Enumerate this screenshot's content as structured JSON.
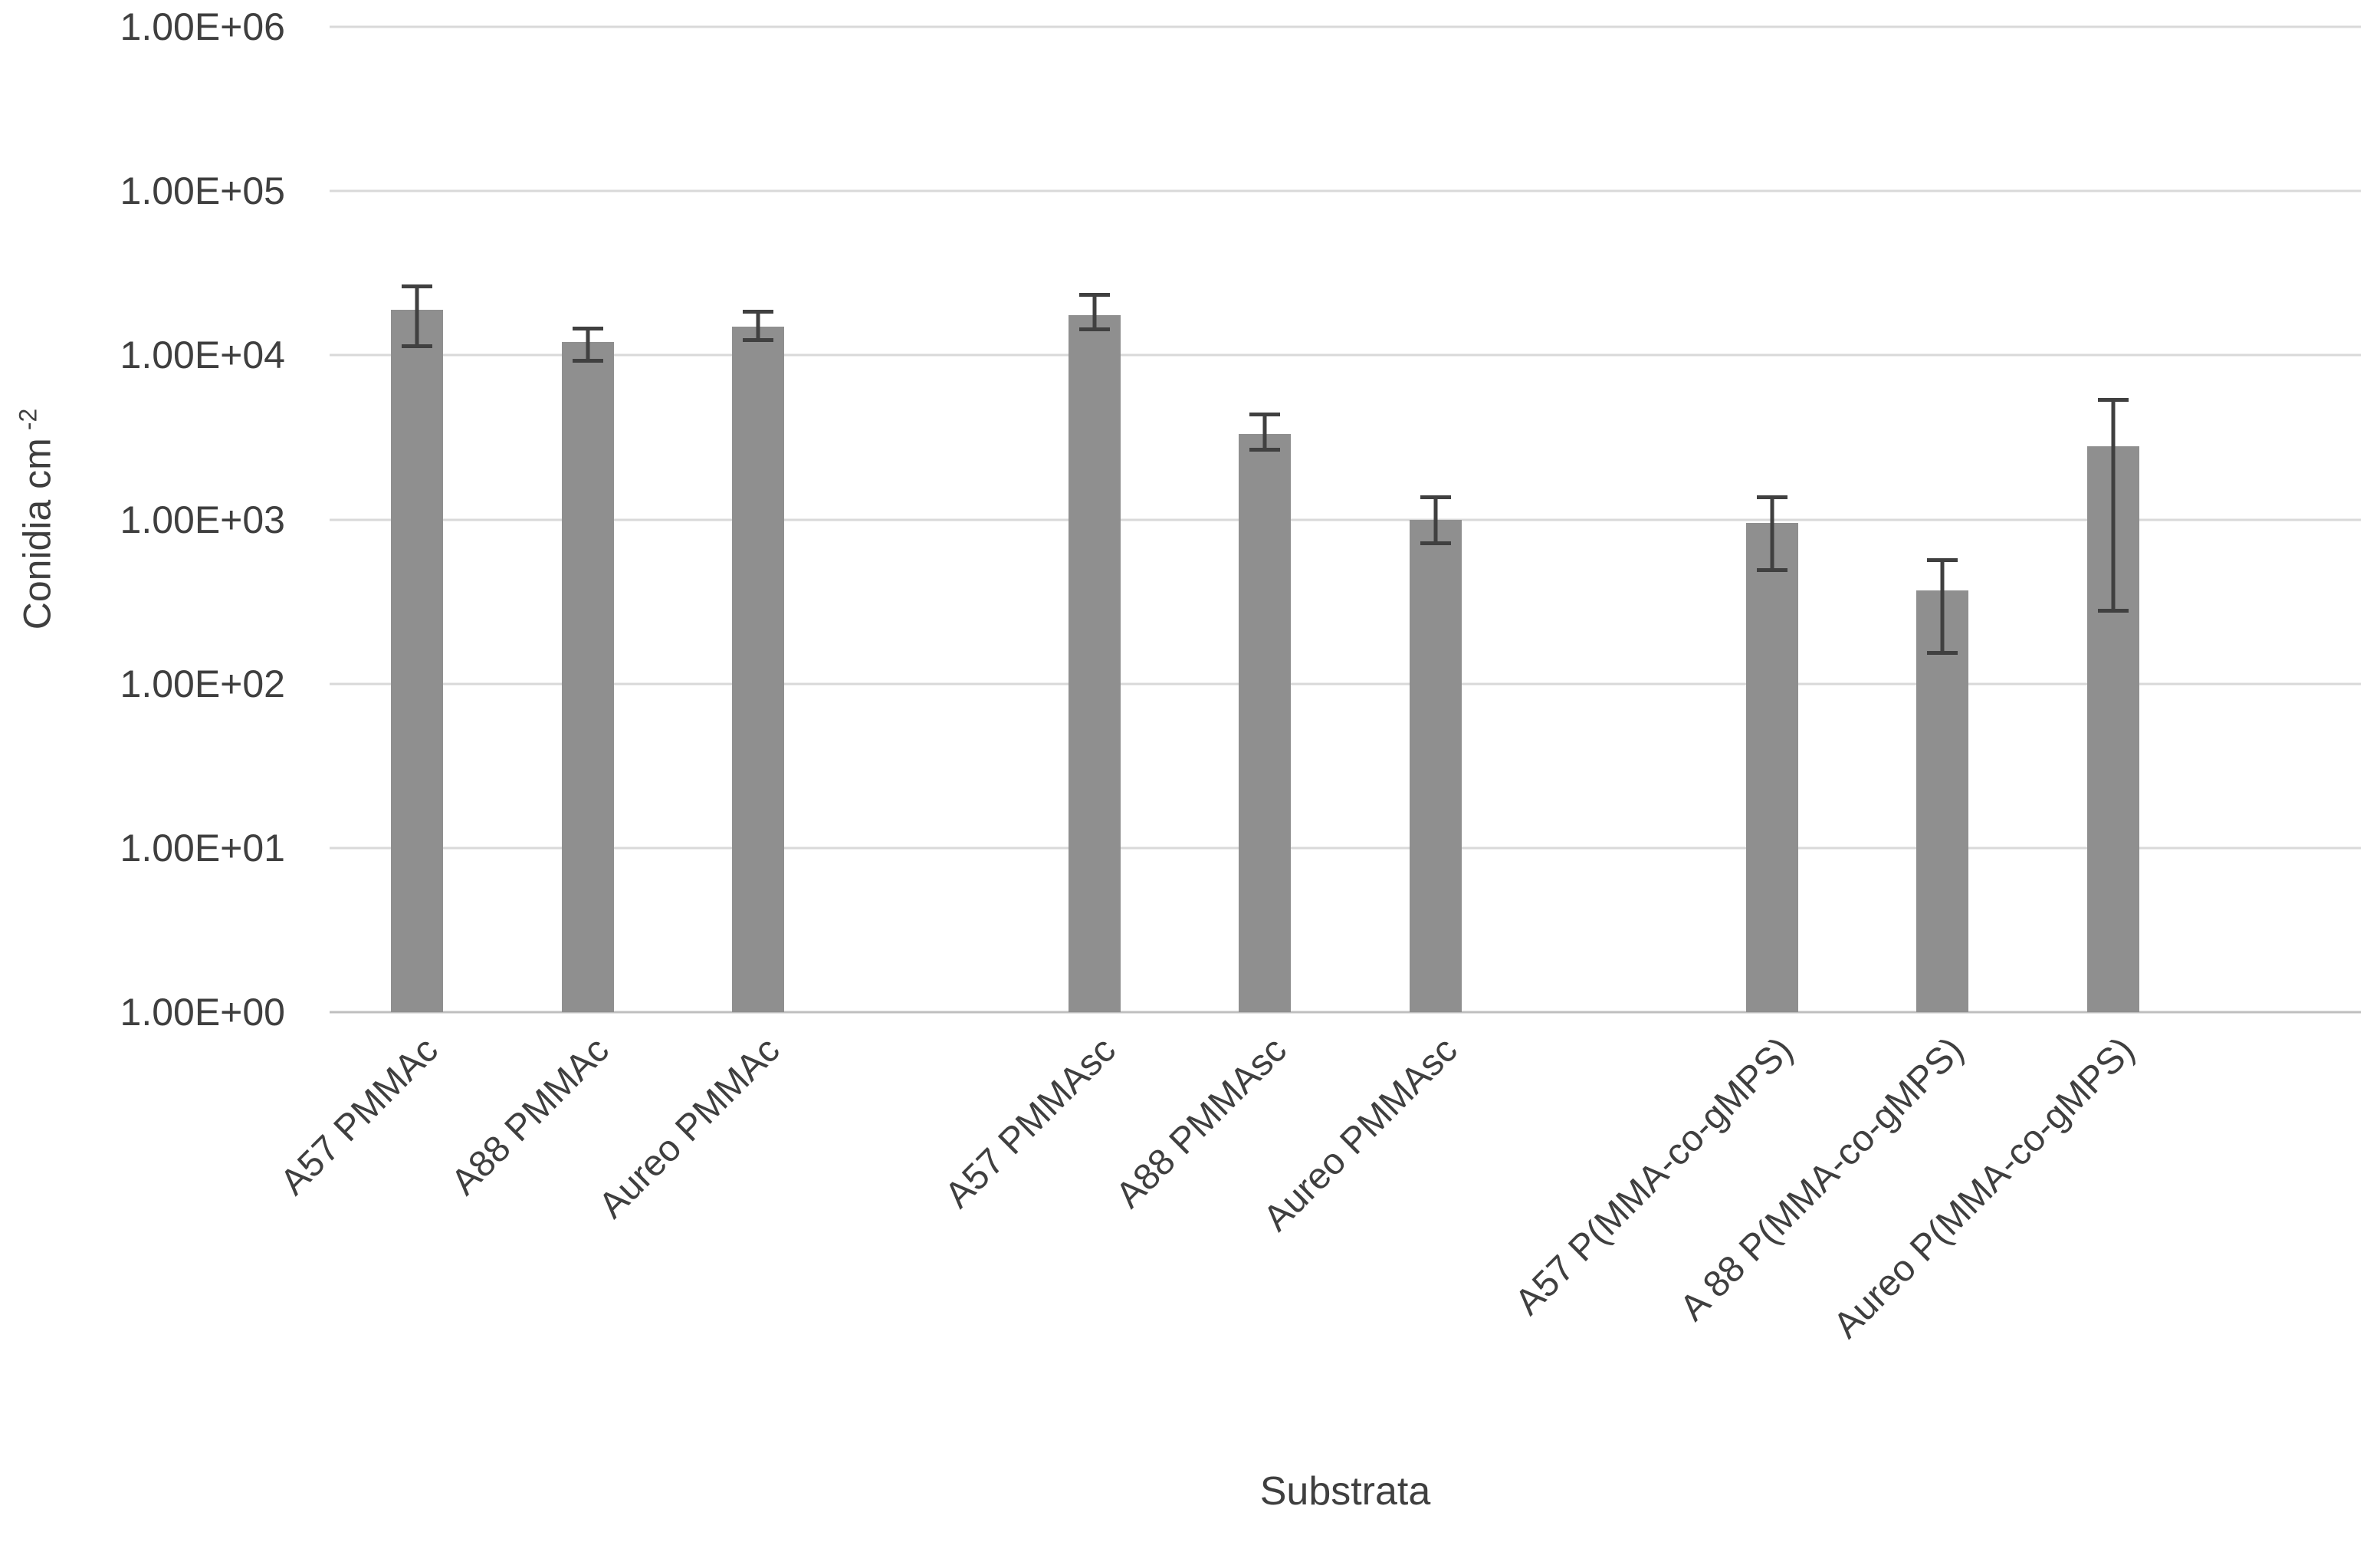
{
  "chart_data": {
    "type": "bar",
    "title": "",
    "xlabel": "Substrata",
    "ylabel": "Conidia cm",
    "ylabel_superscript": "-2",
    "y_scale": "log10",
    "ylim": [
      1,
      1000000
    ],
    "ytick_labels": [
      "1.00E+00",
      "1.00E+01",
      "1.00E+02",
      "1.00E+03",
      "1.00E+04",
      "1.00E+05",
      "1.00E+06"
    ],
    "categories": [
      "A57 PMMAc",
      "A88 PMMAc",
      "Aureo PMMAc",
      "A57 PMMAsc",
      "A88 PMMAsc",
      "Aureo PMMAsc",
      "A57 P(MMA-co-gMPS)",
      "A 88 P(MMA-co-gMPS)",
      "Aureo P(MMA-co-gMPS)"
    ],
    "values": [
      19000,
      12000,
      15000,
      17500,
      3300,
      1000,
      950,
      370,
      2800
    ],
    "error_high": [
      27000,
      15000,
      19000,
      24000,
      4500,
      1400,
      1400,
      580,
      5500
    ],
    "error_low": [
      11000,
      9000,
      12000,
      14000,
      2600,
      700,
      480,
      150,
      270
    ],
    "group_size": 3,
    "legend": "none",
    "grid": "horizontal",
    "bar_color": "#8f8f8f",
    "gridline_color": "#d9d9d9",
    "axis_line_color": "#bfbfbf",
    "error_bar_color": "#404040",
    "text_color": "#3f3f3f",
    "background_color": "#ffffff"
  }
}
